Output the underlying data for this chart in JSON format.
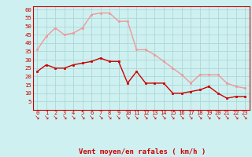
{
  "hours": [
    0,
    1,
    2,
    3,
    4,
    5,
    6,
    7,
    8,
    9,
    10,
    11,
    12,
    13,
    14,
    15,
    16,
    17,
    18,
    19,
    20,
    21,
    22,
    23
  ],
  "wind_avg": [
    23,
    27,
    25,
    25,
    27,
    28,
    29,
    31,
    29,
    29,
    16,
    23,
    16,
    16,
    16,
    10,
    10,
    11,
    12,
    14,
    10,
    7,
    8,
    8
  ],
  "wind_gust": [
    36,
    44,
    49,
    45,
    46,
    49,
    57,
    58,
    58,
    53,
    53,
    36,
    36,
    33,
    29,
    25,
    21,
    16,
    21,
    21,
    21,
    16,
    14,
    13
  ],
  "bg_color": "#cff0f0",
  "grid_color": "#aad8d8",
  "avg_color": "#cc0000",
  "gust_color": "#ee9999",
  "xlabel": "Vent moyen/en rafales ( km/h )",
  "xlabel_color": "#cc0000",
  "ylabel_ticks": [
    5,
    10,
    15,
    20,
    25,
    30,
    35,
    40,
    45,
    50,
    55,
    60
  ],
  "ylim": [
    0,
    62
  ],
  "xlim": [
    -0.5,
    23.5
  ],
  "arrow_char": "↘"
}
